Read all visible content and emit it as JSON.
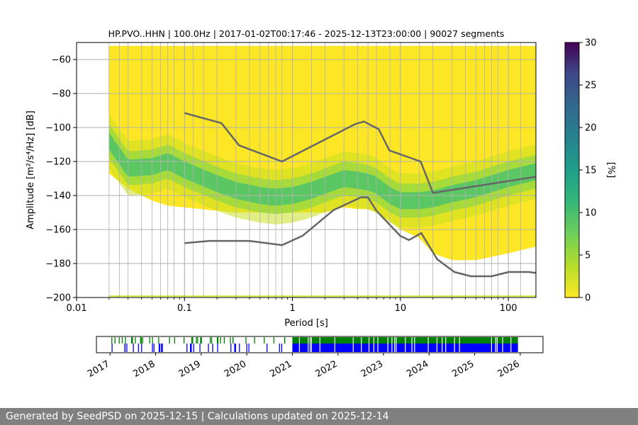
{
  "chart_data": {
    "type": "heatmap",
    "title": "HP.PVO..HHN | 100.0Hz | 2017-01-02T00:17:46 - 2025-12-13T23:00:00 | 90027 segments",
    "xlabel": "Period [s]",
    "ylabel": "Amplitude [m²/s⁴/Hz] [dB]",
    "x_scale": "log",
    "xlim": [
      0.01,
      180
    ],
    "ylim": [
      -200,
      -50
    ],
    "x_ticks": [
      0.01,
      0.1,
      1,
      10,
      100
    ],
    "x_tick_labels": [
      "0.01",
      "0.1",
      "1",
      "10",
      "100"
    ],
    "y_ticks": [
      -200,
      -180,
      -160,
      -140,
      -120,
      -100,
      -80,
      -60
    ],
    "y_tick_labels": [
      "−200",
      "−180",
      "−160",
      "−140",
      "−120",
      "−100",
      "−80",
      "−60"
    ],
    "grid": true,
    "period_bins": [
      0.02,
      0.025,
      0.03,
      0.04,
      0.05,
      0.06,
      0.07,
      0.08,
      0.1,
      0.12,
      0.15,
      0.2,
      0.3,
      0.4,
      0.5,
      0.6,
      0.7,
      0.8,
      1,
      1.5,
      2,
      3,
      4,
      5,
      6,
      8,
      10,
      15,
      20,
      30,
      40,
      50,
      60,
      70,
      80,
      100,
      130,
      180
    ],
    "psd_band": {
      "period": [
        0.02,
        0.03,
        0.05,
        0.07,
        0.1,
        0.2,
        0.3,
        0.5,
        0.7,
        1,
        1.5,
        2,
        3,
        4,
        5,
        6,
        8,
        10,
        15,
        20,
        30,
        50,
        100,
        180
      ],
      "mode": [
        -108,
        -124,
        -123,
        -120,
        -125,
        -133,
        -137,
        -140,
        -141,
        -140,
        -137,
        -134,
        -130,
        -131,
        -132,
        -134,
        -140,
        -143,
        -143,
        -142,
        -139,
        -136,
        -130,
        -126
      ],
      "upper": [
        -52,
        -52,
        -52,
        -52,
        -52,
        -52,
        -52,
        -52,
        -52,
        -52,
        -52,
        -52,
        -52,
        -52,
        -52,
        -52,
        -52,
        -52,
        -52,
        -52,
        -52,
        -52,
        -52,
        -52
      ],
      "lower": [
        -127,
        -136,
        -143,
        -146,
        -147,
        -149,
        -150,
        -150,
        -150,
        -150,
        -150,
        -150,
        -147,
        -148,
        -148,
        -150,
        -155,
        -160,
        -165,
        -174,
        -178,
        -178,
        -174,
        -170
      ]
    },
    "nhnm": {
      "period": [
        0.1,
        0.22,
        0.32,
        0.8,
        3.8,
        4.6,
        6.3,
        7.9,
        15.4,
        20,
        354.8
      ],
      "values": [
        -91.5,
        -97.4,
        -110.5,
        -120,
        -98,
        -96.5,
        -101,
        -113.5,
        -120,
        -138.5,
        -126
      ]
    },
    "nlnm": {
      "period": [
        0.1,
        0.17,
        0.4,
        0.8,
        1.24,
        2.4,
        4.3,
        5,
        6,
        10,
        12,
        15.6,
        21.9,
        31.6,
        45,
        70,
        101,
        154,
        180
      ],
      "values": [
        -168,
        -166.7,
        -166.7,
        -169.2,
        -163.7,
        -148.6,
        -141.1,
        -141.1,
        -149,
        -163.8,
        -166.2,
        -162.1,
        -177.5,
        -185,
        -187.5,
        -187.5,
        -185,
        -185,
        -185.5
      ]
    },
    "colorbar": {
      "label": "[%]",
      "range": [
        0,
        30
      ],
      "ticks": [
        0,
        5,
        10,
        15,
        20,
        25,
        30
      ],
      "tick_labels": [
        "0",
        "5",
        "10",
        "15",
        "20",
        "25",
        "30"
      ]
    },
    "availability": {
      "year_ticks": [
        "2017",
        "2018",
        "2019",
        "2020",
        "2021",
        "2022",
        "2023",
        "2024",
        "2025",
        "2026"
      ],
      "range_years": [
        2016.7,
        2026.5
      ],
      "continuous_start": 2021.0,
      "continuous_end": 2025.95
    }
  },
  "footer": {
    "text": "Generated by SeedPSD on 2025-12-15 | Calculations updated on 2025-12-14"
  },
  "colors": {
    "background_pdf": "#fde725",
    "model_lines": "#666666",
    "grid": "#b0b0b0",
    "availability_green": "#008000",
    "availability_blue": "#0000ff",
    "footer_bg": "#808080"
  }
}
